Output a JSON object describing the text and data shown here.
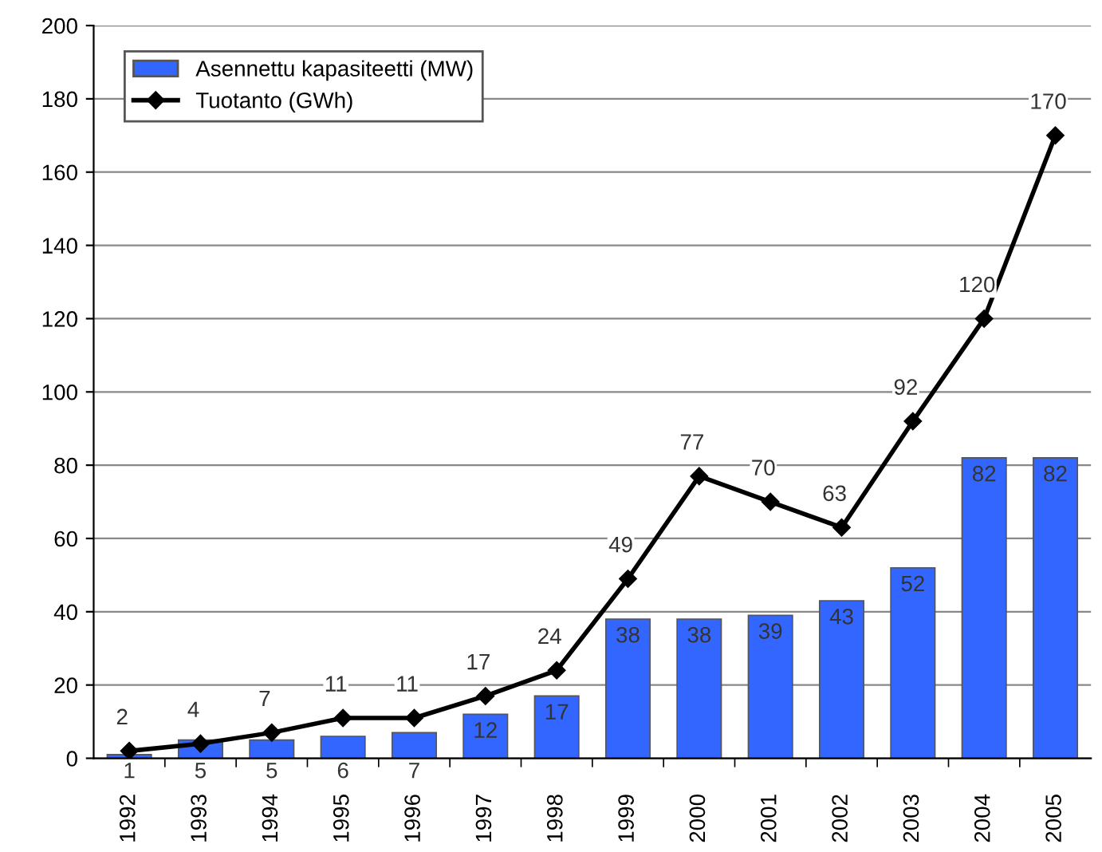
{
  "chart_data": {
    "type": "bar",
    "categories": [
      "1992",
      "1993",
      "1994",
      "1995",
      "1996",
      "1997",
      "1998",
      "1999",
      "2000",
      "2001",
      "2002",
      "2003",
      "2004",
      "2005"
    ],
    "series": [
      {
        "name": "Asennettu kapasiteetti (MW)",
        "color": "#3366ff",
        "values": [
          1,
          5,
          5,
          6,
          7,
          12,
          17,
          38,
          38,
          39,
          43,
          52,
          82,
          82
        ]
      },
      {
        "name": "Tuotanto (GWh)",
        "type": "line",
        "color": "#000000",
        "marker": "diamond",
        "values": [
          2,
          4,
          7,
          11,
          11,
          17,
          24,
          49,
          77,
          70,
          63,
          92,
          120,
          170
        ]
      }
    ],
    "ylim": [
      0,
      200
    ],
    "yticks": [
      0,
      20,
      40,
      60,
      80,
      100,
      120,
      140,
      160,
      180,
      200
    ],
    "grid": "y",
    "legend": "top left",
    "data_labels": true
  }
}
